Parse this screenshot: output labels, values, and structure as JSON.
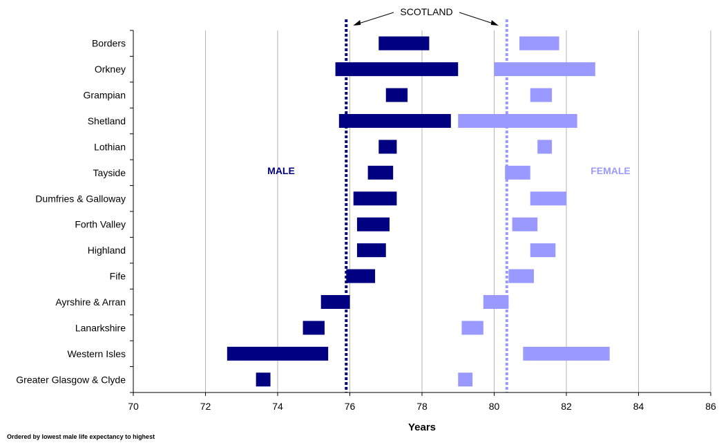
{
  "chart_data": {
    "type": "bar",
    "subtype": "floating-range",
    "categories": [
      "Borders",
      "Orkney",
      "Grampian",
      "Shetland",
      "Lothian",
      "Tayside",
      "Dumfries & Galloway",
      "Forth Valley",
      "Highland",
      "Fife",
      "Ayrshire & Arran",
      "Lanarkshire",
      "Western Isles",
      "Greater Glasgow & Clyde"
    ],
    "series": [
      {
        "name": "MALE",
        "color": "#000080",
        "ranges": [
          [
            76.8,
            78.2
          ],
          [
            75.6,
            79.0
          ],
          [
            77.0,
            77.6
          ],
          [
            75.7,
            78.8
          ],
          [
            76.8,
            77.3
          ],
          [
            76.5,
            77.2
          ],
          [
            76.1,
            77.3
          ],
          [
            76.2,
            77.1
          ],
          [
            76.2,
            77.0
          ],
          [
            75.9,
            76.7
          ],
          [
            75.2,
            76.0
          ],
          [
            74.7,
            75.3
          ],
          [
            72.6,
            75.4
          ],
          [
            73.4,
            73.8
          ]
        ]
      },
      {
        "name": "FEMALE",
        "color": "#9999ff",
        "ranges": [
          [
            80.7,
            81.8
          ],
          [
            80.0,
            82.8
          ],
          [
            81.0,
            81.6
          ],
          [
            79.0,
            82.3
          ],
          [
            81.2,
            81.6
          ],
          [
            80.3,
            81.0
          ],
          [
            81.0,
            82.0
          ],
          [
            80.5,
            81.2
          ],
          [
            81.0,
            81.7
          ],
          [
            80.4,
            81.1
          ],
          [
            79.7,
            80.4
          ],
          [
            79.1,
            79.7
          ],
          [
            80.8,
            83.2
          ],
          [
            79.0,
            79.4
          ]
        ]
      }
    ],
    "reference_lines": [
      {
        "series": "MALE",
        "value": 75.9,
        "color": "#000080",
        "style": "dotted"
      },
      {
        "series": "FEMALE",
        "value": 80.35,
        "color": "#9999ff",
        "style": "dotted"
      }
    ],
    "reference_label": "SCOTLAND",
    "xlabel": "Years",
    "xlim": [
      70,
      86
    ],
    "xticks": [
      70,
      72,
      74,
      76,
      78,
      80,
      82,
      84,
      86
    ],
    "grid": "vertical",
    "annotations": {
      "male": "MALE",
      "female": "FEMALE"
    },
    "footnote": "Ordered by lowest male life expectancy to highest"
  }
}
